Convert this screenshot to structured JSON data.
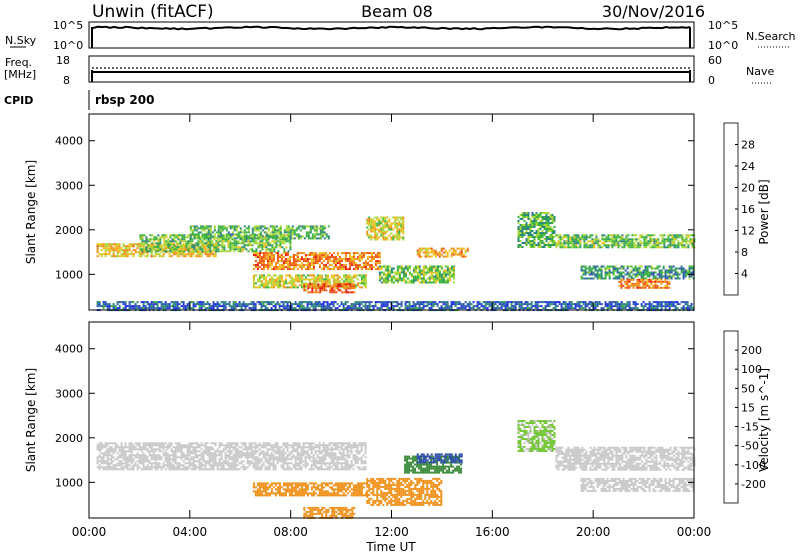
{
  "header": {
    "station": "Unwin (fitACF)",
    "beam": "Beam 08",
    "date": "30/Nov/2016"
  },
  "nsky": {
    "label": "N.Sky",
    "tick_top": "10^5",
    "tick_bottom": "10^0",
    "right_label": "N.Search",
    "right_tick_top": "10^5",
    "right_tick_bottom": "10^0"
  },
  "freq": {
    "label_line1": "Freq.",
    "label_line2": "[MHz]",
    "tick_top": "18",
    "tick_bottom": "8",
    "right_label": "Nave",
    "right_tick_top": "60",
    "right_tick_bottom": "0"
  },
  "cpid": {
    "label": "CPID",
    "value": "rbsp 200"
  },
  "colors": {
    "power_scale": [
      "#1e2ee8",
      "#2e58b0",
      "#2e8a78",
      "#3cb43c",
      "#a8d83a",
      "#f0c020",
      "#f09018",
      "#f05010",
      "#e81010"
    ],
    "velocity_scale": [
      "#e81010",
      "#f05010",
      "#f09018",
      "#f0b020",
      "#c8c8c8",
      "#c8c8c8",
      "#78c83c",
      "#3a8a3a",
      "#2e4ea8",
      "#1e2ee8"
    ]
  },
  "chart_data": [
    {
      "type": "heatmap",
      "name": "power-panel",
      "ylabel": "Slant Range [km]",
      "y_ticks": [
        "1000",
        "2000",
        "3000",
        "4000"
      ],
      "ylim": [
        200,
        4600
      ],
      "x_ticks": [
        "00:00",
        "04:00",
        "08:00",
        "12:00",
        "16:00",
        "20:00",
        "00:00"
      ],
      "xlim_hours": [
        0,
        24
      ],
      "colorbar": {
        "label": "Power [dB]",
        "ticks": [
          "4",
          "8",
          "12",
          "16",
          "20",
          "24",
          "28"
        ],
        "range": [
          0,
          32
        ]
      },
      "regions": [
        {
          "t0": 0.3,
          "t1": 5.0,
          "r0": 1400,
          "r1": 1700,
          "value": 20
        },
        {
          "t0": 2.0,
          "t1": 8.0,
          "r0": 1500,
          "r1": 1900,
          "value": 14
        },
        {
          "t0": 4.0,
          "t1": 9.5,
          "r0": 1800,
          "r1": 2100,
          "value": 12
        },
        {
          "t0": 6.5,
          "t1": 11.5,
          "r0": 1100,
          "r1": 1500,
          "value": 24
        },
        {
          "t0": 6.5,
          "t1": 11.0,
          "r0": 700,
          "r1": 1000,
          "value": 18
        },
        {
          "t0": 8.5,
          "t1": 10.5,
          "r0": 600,
          "r1": 800,
          "value": 26
        },
        {
          "t0": 11.0,
          "t1": 12.5,
          "r0": 1800,
          "r1": 2300,
          "value": 18
        },
        {
          "t0": 11.5,
          "t1": 14.5,
          "r0": 800,
          "r1": 1200,
          "value": 14
        },
        {
          "t0": 13.0,
          "t1": 15.0,
          "r0": 1400,
          "r1": 1600,
          "value": 22
        },
        {
          "t0": 17.0,
          "t1": 18.5,
          "r0": 1600,
          "r1": 2400,
          "value": 12
        },
        {
          "t0": 18.5,
          "t1": 24.0,
          "r0": 1600,
          "r1": 1900,
          "value": 14
        },
        {
          "t0": 19.5,
          "t1": 24.0,
          "r0": 900,
          "r1": 1200,
          "value": 10
        },
        {
          "t0": 21.0,
          "t1": 23.0,
          "r0": 700,
          "r1": 900,
          "value": 24
        },
        {
          "t0": 0.3,
          "t1": 24.0,
          "r0": 220,
          "r1": 400,
          "value": 6
        }
      ]
    },
    {
      "type": "heatmap",
      "name": "velocity-panel",
      "ylabel": "Slant Range [km]",
      "y_ticks": [
        "1000",
        "2000",
        "3000",
        "4000"
      ],
      "ylim": [
        200,
        4600
      ],
      "x_ticks": [
        "00:00",
        "04:00",
        "08:00",
        "12:00",
        "16:00",
        "20:00",
        "00:00"
      ],
      "xlim_hours": [
        0,
        24
      ],
      "xlabel": "Time UT",
      "colorbar": {
        "label": "Velocity [m s^-1]",
        "ticks": [
          "-200",
          "-100",
          "-50",
          "-15",
          "15",
          "50",
          "100",
          "200"
        ]
      },
      "regions": [
        {
          "t0": 0.3,
          "t1": 11.0,
          "r0": 1300,
          "r1": 1900,
          "value": 0
        },
        {
          "t0": 6.5,
          "t1": 11.0,
          "r0": 700,
          "r1": 1000,
          "value": -60
        },
        {
          "t0": 11.0,
          "t1": 14.0,
          "r0": 500,
          "r1": 1100,
          "value": -80
        },
        {
          "t0": 12.5,
          "t1": 14.8,
          "r0": 1200,
          "r1": 1600,
          "value": 60
        },
        {
          "t0": 13.0,
          "t1": 14.8,
          "r0": 1450,
          "r1": 1650,
          "value": 180
        },
        {
          "t0": 17.0,
          "t1": 18.5,
          "r0": 1700,
          "r1": 2400,
          "value": 20
        },
        {
          "t0": 18.5,
          "t1": 24.0,
          "r0": 1300,
          "r1": 1800,
          "value": 0
        },
        {
          "t0": 19.5,
          "t1": 24.0,
          "r0": 800,
          "r1": 1100,
          "value": 0
        },
        {
          "t0": 8.5,
          "t1": 10.5,
          "r0": 220,
          "r1": 450,
          "value": -60
        }
      ]
    }
  ]
}
